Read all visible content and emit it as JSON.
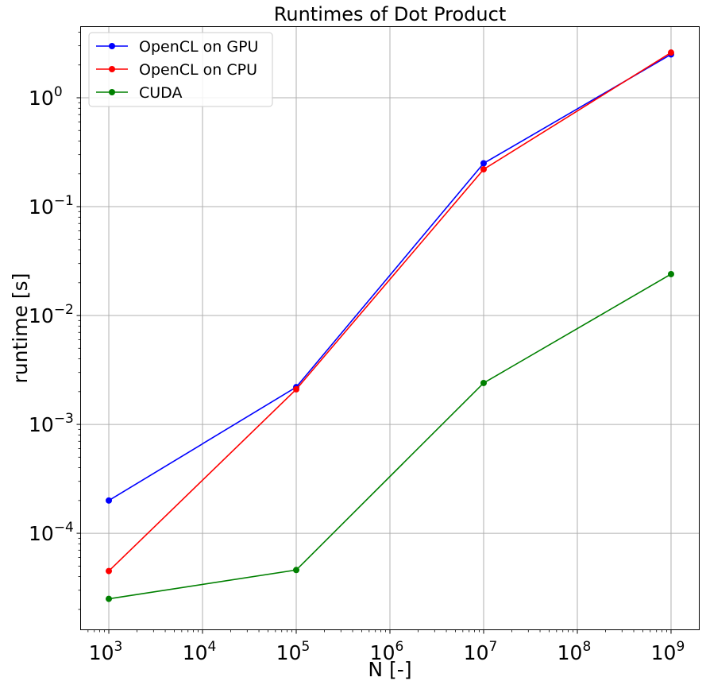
{
  "chart_data": {
    "type": "line",
    "title": "Runtimes of Dot Product",
    "xlabel": "N [-]",
    "ylabel": "runtime [s]",
    "xscale": "log",
    "yscale": "log",
    "xlim": [
      500,
      2000000000
    ],
    "ylim": [
      1.3e-05,
      4.5
    ],
    "x": [
      1000,
      100000,
      10000000,
      1000000000
    ],
    "xticks": [
      {
        "value": 1000,
        "base": "10",
        "exp": "3"
      },
      {
        "value": 10000,
        "base": "10",
        "exp": "4"
      },
      {
        "value": 100000,
        "base": "10",
        "exp": "5"
      },
      {
        "value": 1000000,
        "base": "10",
        "exp": "6"
      },
      {
        "value": 10000000,
        "base": "10",
        "exp": "7"
      },
      {
        "value": 100000000,
        "base": "10",
        "exp": "8"
      },
      {
        "value": 1000000000,
        "base": "10",
        "exp": "9"
      }
    ],
    "yticks": [
      {
        "value": 0.0001,
        "base": "10",
        "exp": "−4"
      },
      {
        "value": 0.001,
        "base": "10",
        "exp": "−3"
      },
      {
        "value": 0.01,
        "base": "10",
        "exp": "−2"
      },
      {
        "value": 0.1,
        "base": "10",
        "exp": "−1"
      },
      {
        "value": 1,
        "base": "10",
        "exp": "0"
      }
    ],
    "grid": true,
    "legend_position": "top-left",
    "series": [
      {
        "name": "OpenCL on GPU",
        "color": "#0000ff",
        "values": [
          0.0002,
          0.0022,
          0.25,
          2.5
        ]
      },
      {
        "name": "OpenCL on CPU",
        "color": "#ff0000",
        "values": [
          4.5e-05,
          0.0021,
          0.22,
          2.6
        ]
      },
      {
        "name": "CUDA",
        "color": "#008000",
        "values": [
          2.5e-05,
          4.6e-05,
          0.0024,
          0.024
        ]
      }
    ]
  }
}
